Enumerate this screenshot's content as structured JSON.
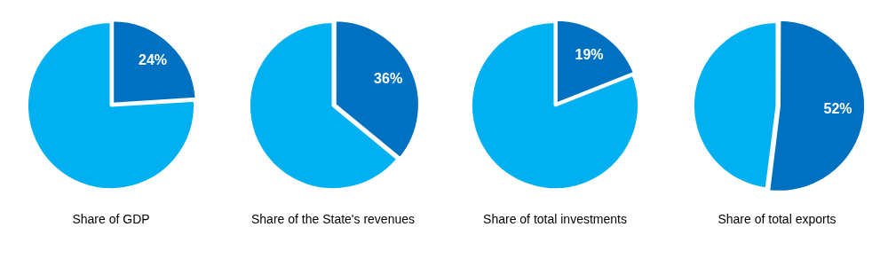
{
  "chart_data": [
    {
      "type": "pie",
      "title": "Share of GDP",
      "values": [
        24,
        76
      ],
      "value_labels": [
        "24%",
        null
      ],
      "colors": [
        "#0070c0",
        "#00b0f0"
      ],
      "data_labels": true
    },
    {
      "type": "pie",
      "title": "Share of the State's revenues",
      "values": [
        36,
        64
      ],
      "value_labels": [
        "36%",
        null
      ],
      "colors": [
        "#0070c0",
        "#00b0f0"
      ],
      "data_labels": true
    },
    {
      "type": "pie",
      "title": "Share of total investments",
      "values": [
        19,
        81
      ],
      "value_labels": [
        "19%",
        null
      ],
      "colors": [
        "#0070c0",
        "#00b0f0"
      ],
      "data_labels": true
    },
    {
      "type": "pie",
      "title": "Share of total exports",
      "values": [
        52,
        48
      ],
      "value_labels": [
        "52%",
        null
      ],
      "colors": [
        "#0070c0",
        "#00b0f0"
      ],
      "data_labels": true
    }
  ]
}
